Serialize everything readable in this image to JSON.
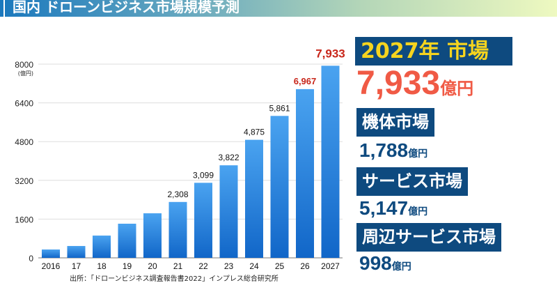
{
  "title": "国内 ドローンビジネス市場規模予測",
  "chart_data": {
    "type": "bar",
    "categories": [
      "2016",
      "17",
      "18",
      "19",
      "20",
      "21",
      "22",
      "23",
      "24",
      "25",
      "26",
      "2027"
    ],
    "values": [
      345,
      490,
      920,
      1410,
      1840,
      2308,
      3099,
      3822,
      4875,
      5861,
      6967,
      7933
    ],
    "data_labels": [
      "",
      "",
      "",
      "",
      "",
      "2,308",
      "3,099",
      "3,822",
      "4,875",
      "5,861",
      "6,967",
      "7,933"
    ],
    "highlight_labels": [
      "26",
      "2027"
    ],
    "y_ticks": [
      "0",
      "1600",
      "3200",
      "4800",
      "6400",
      "8000"
    ],
    "ylabel": "(億円)",
    "ylim": [
      0,
      8000
    ],
    "grid": true,
    "bar_color": "#2f8ae0",
    "highlight_color": "#c8261a",
    "source": "出所：「ドローンビジネス調査報告書2022」インプレス総合研究所"
  },
  "summary": {
    "headline": "2027年 市場",
    "total": "7,933",
    "unit": "億円",
    "segments": [
      {
        "label": "機体市場",
        "value": "1,788",
        "unit": "億円"
      },
      {
        "label": "サービス市場",
        "value": "5,147",
        "unit": "億円"
      },
      {
        "label": "周辺サービス市場",
        "value": "998",
        "unit": "億円"
      }
    ]
  }
}
